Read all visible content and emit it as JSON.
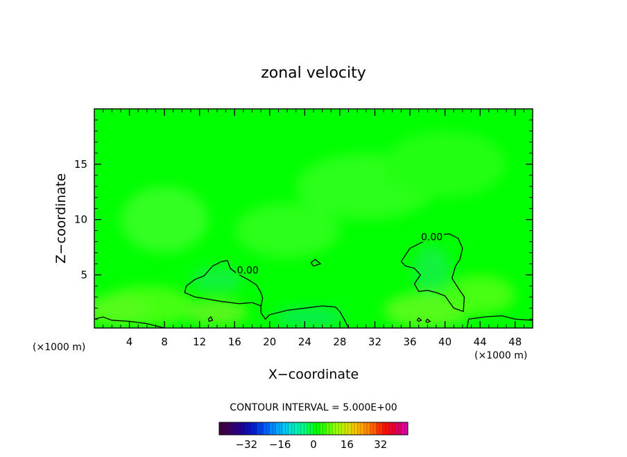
{
  "chart_data": {
    "type": "heatmap",
    "title": "zonal velocity",
    "xlabel": "X−coordinate",
    "ylabel": "Z−coordinate",
    "x_unit_left": "(×1000 m)",
    "x_unit_right": "(×1000 m)",
    "xlim": [
      0,
      50
    ],
    "ylim": [
      0.2,
      20
    ],
    "x_ticks": [
      4,
      8,
      12,
      16,
      20,
      24,
      28,
      32,
      36,
      40,
      44,
      48
    ],
    "y_ticks": [
      5,
      10,
      15
    ],
    "field_background_color": "#00ff00",
    "contour_labels": [
      {
        "text": "0.00",
        "x": 17.5,
        "y": 5.3
      },
      {
        "text": "0.00",
        "x": 38.5,
        "y": 8.3
      }
    ],
    "zero_contours": [
      [
        [
          10.5,
          4.0
        ],
        [
          10.3,
          3.4
        ],
        [
          11.5,
          3.0
        ],
        [
          13.0,
          2.8
        ],
        [
          14.5,
          2.6
        ],
        [
          16.5,
          2.4
        ],
        [
          18.0,
          2.5
        ],
        [
          19.0,
          2.2
        ],
        [
          19.0,
          1.6
        ],
        [
          19.5,
          1.0
        ],
        [
          20.0,
          1.4
        ],
        [
          22.0,
          1.8
        ],
        [
          24.0,
          2.0
        ],
        [
          26.0,
          2.2
        ],
        [
          27.5,
          2.1
        ],
        [
          28.0,
          1.7
        ],
        [
          28.5,
          1.0
        ],
        [
          29.0,
          0.2
        ]
      ],
      [
        [
          10.5,
          4.0
        ],
        [
          11.5,
          4.6
        ],
        [
          12.5,
          4.9
        ],
        [
          13.5,
          5.8
        ],
        [
          14.5,
          6.2
        ],
        [
          15.2,
          6.3
        ],
        [
          15.5,
          5.6
        ],
        [
          16.3,
          5.1
        ],
        [
          17.5,
          4.6
        ],
        [
          18.5,
          4.1
        ],
        [
          19.0,
          3.4
        ],
        [
          19.2,
          2.9
        ],
        [
          19.0,
          2.2
        ]
      ],
      [
        [
          0.0,
          1.0
        ],
        [
          1.0,
          1.2
        ],
        [
          2.0,
          0.9
        ],
        [
          4.0,
          0.8
        ],
        [
          6.0,
          0.6
        ],
        [
          7.5,
          0.3
        ],
        [
          8.0,
          0.2
        ]
      ],
      [
        [
          35.0,
          6.2
        ],
        [
          36.0,
          7.4
        ],
        [
          37.5,
          8.0
        ],
        [
          39.0,
          8.6
        ],
        [
          40.5,
          8.7
        ],
        [
          41.5,
          8.3
        ],
        [
          42.0,
          7.4
        ],
        [
          41.7,
          6.4
        ],
        [
          41.2,
          5.8
        ],
        [
          40.8,
          4.7
        ],
        [
          41.6,
          3.7
        ],
        [
          42.2,
          3.0
        ],
        [
          42.1,
          1.7
        ],
        [
          41.0,
          2.0
        ],
        [
          40.0,
          3.1
        ],
        [
          39.0,
          3.4
        ],
        [
          38.0,
          3.6
        ],
        [
          37.0,
          3.5
        ],
        [
          36.5,
          4.2
        ],
        [
          37.2,
          5.0
        ],
        [
          36.5,
          5.6
        ],
        [
          35.5,
          5.8
        ],
        [
          35.0,
          6.2
        ]
      ],
      [
        [
          42.5,
          0.2
        ],
        [
          42.7,
          1.0
        ],
        [
          44.5,
          1.2
        ],
        [
          46.5,
          1.3
        ],
        [
          48.0,
          1.0
        ],
        [
          50.0,
          0.9
        ]
      ],
      [
        [
          24.7,
          6.1
        ],
        [
          25.2,
          6.4
        ],
        [
          25.8,
          6.0
        ],
        [
          25.0,
          5.8
        ],
        [
          24.7,
          6.1
        ]
      ],
      [
        [
          13.0,
          1.0
        ],
        [
          13.3,
          1.2
        ],
        [
          13.5,
          0.9
        ],
        [
          13.1,
          0.8
        ],
        [
          13.0,
          1.0
        ]
      ],
      [
        [
          36.8,
          0.9
        ],
        [
          37.0,
          1.1
        ],
        [
          37.3,
          0.9
        ],
        [
          37.0,
          0.8
        ],
        [
          36.8,
          0.9
        ]
      ],
      [
        [
          37.8,
          0.8
        ],
        [
          38.0,
          1.0
        ],
        [
          38.3,
          0.8
        ],
        [
          38.0,
          0.7
        ],
        [
          37.8,
          0.8
        ]
      ]
    ],
    "colorbar": {
      "label": "CONTOUR INTERVAL = 5.000E+00",
      "range": [
        -45,
        45
      ],
      "tick_values": [
        -32,
        -16,
        0,
        16,
        32
      ],
      "tick_labels": [
        "−32",
        "−16",
        "0",
        "16",
        "32"
      ],
      "colors": [
        "#400040",
        "#3a005a",
        "#300078",
        "#200095",
        "#1010b0",
        "#0020d0",
        "#0040e8",
        "#0060f8",
        "#0088ff",
        "#00aaff",
        "#00c8f0",
        "#00e0d0",
        "#00f0b0",
        "#00ff80",
        "#00ff40",
        "#00ff00",
        "#30ff00",
        "#60ff00",
        "#90ff00",
        "#b8f000",
        "#d8e000",
        "#f0c800",
        "#ffa800",
        "#ff8800",
        "#ff6000",
        "#ff3000",
        "#ff1000",
        "#f00030",
        "#e00060",
        "#e000a0"
      ]
    }
  }
}
